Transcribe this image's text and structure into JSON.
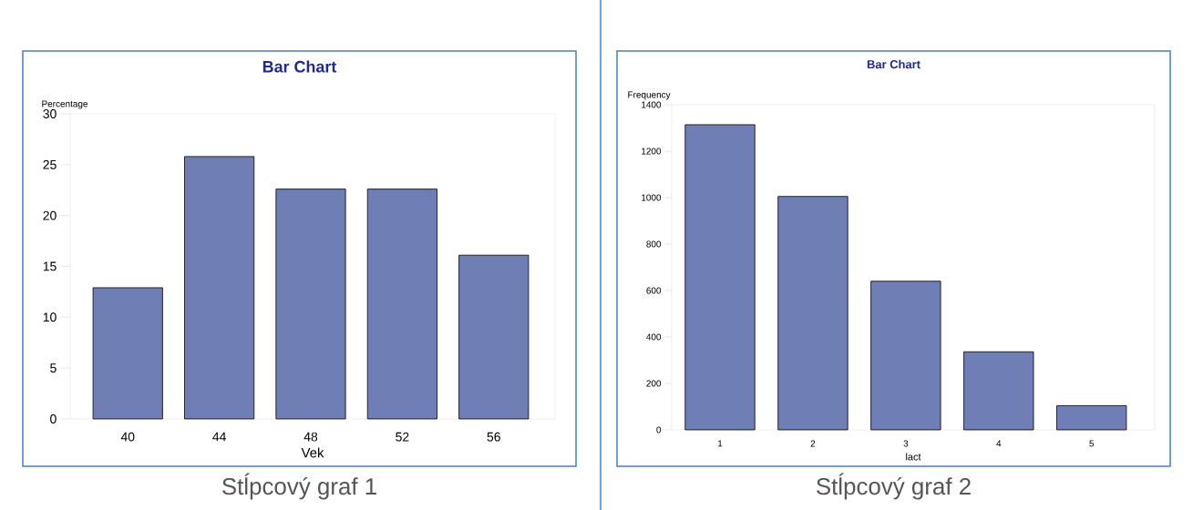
{
  "chart_data": [
    {
      "type": "bar",
      "title": "Bar Chart",
      "xlabel": "Vek",
      "ylabel": "Percentage",
      "categories": [
        "40",
        "44",
        "48",
        "52",
        "56"
      ],
      "values": [
        12.9,
        25.8,
        22.6,
        22.6,
        16.1
      ],
      "color": "#6f7eb4",
      "ylim": [
        0,
        30
      ],
      "yticks": [
        0,
        5,
        10,
        15,
        20,
        25,
        30
      ],
      "grid": false,
      "annotations": [
        "Stĺpcový graf 1"
      ]
    },
    {
      "type": "bar",
      "title": "Bar Chart",
      "xlabel": "lact",
      "ylabel": "Frequency",
      "categories": [
        "1",
        "2",
        "3",
        "4",
        "5"
      ],
      "values": [
        1314,
        1005,
        640,
        336,
        104
      ],
      "color": "#6f7eb4",
      "ylim": [
        0,
        1400
      ],
      "yticks": [
        0,
        200,
        400,
        600,
        800,
        1000,
        1200,
        1400
      ],
      "grid": false,
      "annotations": [
        "Stĺpcový graf 2"
      ]
    }
  ]
}
